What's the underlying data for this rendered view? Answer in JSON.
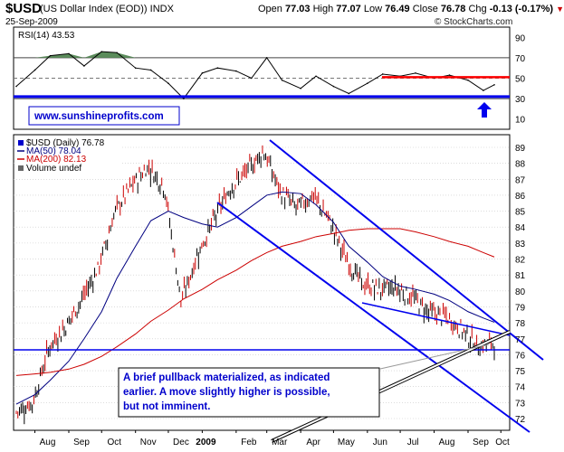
{
  "header": {
    "symbol": "$USD",
    "description": "(US Dollar Index (EOD))",
    "exchange": "INDX",
    "date": "25-Sep-2009",
    "open_label": "Open",
    "open": "77.03",
    "high_label": "High",
    "high": "77.07",
    "low_label": "Low",
    "low": "76.49",
    "close_label": "Close",
    "close": "76.78",
    "chg_label": "Chg",
    "chg": "-0.13 (-0.17%)",
    "chg_arrow": "▼",
    "credit": "© StockCharts.com"
  },
  "colors": {
    "price_blue": "#0000cc",
    "ma50": "#000080",
    "ma200": "#cc0000",
    "rsi_fill": "#5b8c5b",
    "resistance_red": "#ff0000",
    "grid": "#c8c8c8",
    "watermark": "#0000cc"
  },
  "rsi_panel": {
    "label": "RSI(14) 43.53",
    "watermark": "www.sunshineprofits.com",
    "y_ticks": [
      "90",
      "70",
      "50",
      "30",
      "10"
    ]
  },
  "price_panel": {
    "legend_symbol": "$USD (Daily) 76.78",
    "legend_ma50": "MA(50) 78.04",
    "legend_ma200": "MA(200) 82.13",
    "legend_volume": "Volume undef",
    "y_ticks": [
      "89",
      "88",
      "87",
      "86",
      "85",
      "84",
      "83",
      "82",
      "81",
      "80",
      "79",
      "78",
      "77",
      "76",
      "75",
      "74",
      "73",
      "72"
    ],
    "annotation": "A brief pullback materialized, as indicated earlier. A move slightly higher is possible, but not imminent."
  },
  "x_axis": {
    "labels": [
      "Aug",
      "Sep",
      "Oct",
      "Nov",
      "Dec",
      "2009",
      "Feb",
      "Mar",
      "Apr",
      "May",
      "Jun",
      "Jul",
      "Aug",
      "Sep",
      "Oct"
    ]
  },
  "chart_data": [
    {
      "type": "line",
      "title": "RSI(14) 43.53",
      "ylim": [
        0,
        100
      ],
      "y_ticks": [
        10,
        30,
        50,
        70,
        90
      ],
      "x": [
        "2008-07-15",
        "2008-08-01",
        "2008-08-15",
        "2008-09-01",
        "2008-09-15",
        "2008-10-01",
        "2008-10-15",
        "2008-11-01",
        "2008-11-15",
        "2008-12-01",
        "2008-12-15",
        "2009-01-01",
        "2009-01-15",
        "2009-02-01",
        "2009-02-15",
        "2009-03-01",
        "2009-03-15",
        "2009-04-01",
        "2009-04-15",
        "2009-05-01",
        "2009-05-15",
        "2009-06-01",
        "2009-06-15",
        "2009-07-01",
        "2009-07-15",
        "2009-08-01",
        "2009-08-15",
        "2009-09-01",
        "2009-09-15",
        "2009-09-25"
      ],
      "series": [
        {
          "name": "RSI(14)",
          "values": [
            42,
            58,
            72,
            74,
            62,
            76,
            75,
            60,
            58,
            45,
            30,
            55,
            60,
            57,
            50,
            70,
            48,
            40,
            52,
            42,
            35,
            45,
            54,
            52,
            55,
            50,
            53,
            48,
            38,
            43.53
          ]
        }
      ],
      "reference_levels": [
        70,
        50,
        30
      ]
    },
    {
      "type": "line",
      "title": "$USD (Daily) 76.78",
      "ylim": [
        71,
        89.5
      ],
      "x": [
        "2008-07-15",
        "2008-08-01",
        "2008-08-15",
        "2008-09-01",
        "2008-09-15",
        "2008-10-01",
        "2008-10-15",
        "2008-11-01",
        "2008-11-15",
        "2008-12-01",
        "2008-12-15",
        "2009-01-01",
        "2009-01-15",
        "2009-02-01",
        "2009-02-15",
        "2009-03-01",
        "2009-03-15",
        "2009-04-01",
        "2009-04-15",
        "2009-05-01",
        "2009-05-15",
        "2009-06-01",
        "2009-06-15",
        "2009-07-01",
        "2009-07-15",
        "2009-08-01",
        "2009-08-15",
        "2009-09-01",
        "2009-09-15",
        "2009-09-25"
      ],
      "series": [
        {
          "name": "$USD",
          "values": [
            72.4,
            73.0,
            76.5,
            77.8,
            79.5,
            81.5,
            85.0,
            86.6,
            87.8,
            86.5,
            79.3,
            82.3,
            84.5,
            86.5,
            87.5,
            88.8,
            86.2,
            85.2,
            86.0,
            84.4,
            82.0,
            80.4,
            80.1,
            80.2,
            79.6,
            78.7,
            78.4,
            77.6,
            76.5,
            76.78
          ]
        },
        {
          "name": "MA(50)",
          "values": [
            72.9,
            73.5,
            74.4,
            75.6,
            77.0,
            78.7,
            80.8,
            82.8,
            84.4,
            85.0,
            84.6,
            84.2,
            84.0,
            84.6,
            85.3,
            86.0,
            86.2,
            86.1,
            85.4,
            84.3,
            82.8,
            81.8,
            80.9,
            80.3,
            80.1,
            79.8,
            79.4,
            78.7,
            78.3,
            78.04
          ]
        },
        {
          "name": "MA(200)",
          "values": [
            74.7,
            74.8,
            74.9,
            75.1,
            75.4,
            75.9,
            76.5,
            77.3,
            78.1,
            78.8,
            79.5,
            80.1,
            80.7,
            81.3,
            81.9,
            82.4,
            82.8,
            83.1,
            83.4,
            83.6,
            83.8,
            83.9,
            83.9,
            83.9,
            83.7,
            83.4,
            83.1,
            82.8,
            82.4,
            82.13
          ]
        }
      ]
    }
  ]
}
